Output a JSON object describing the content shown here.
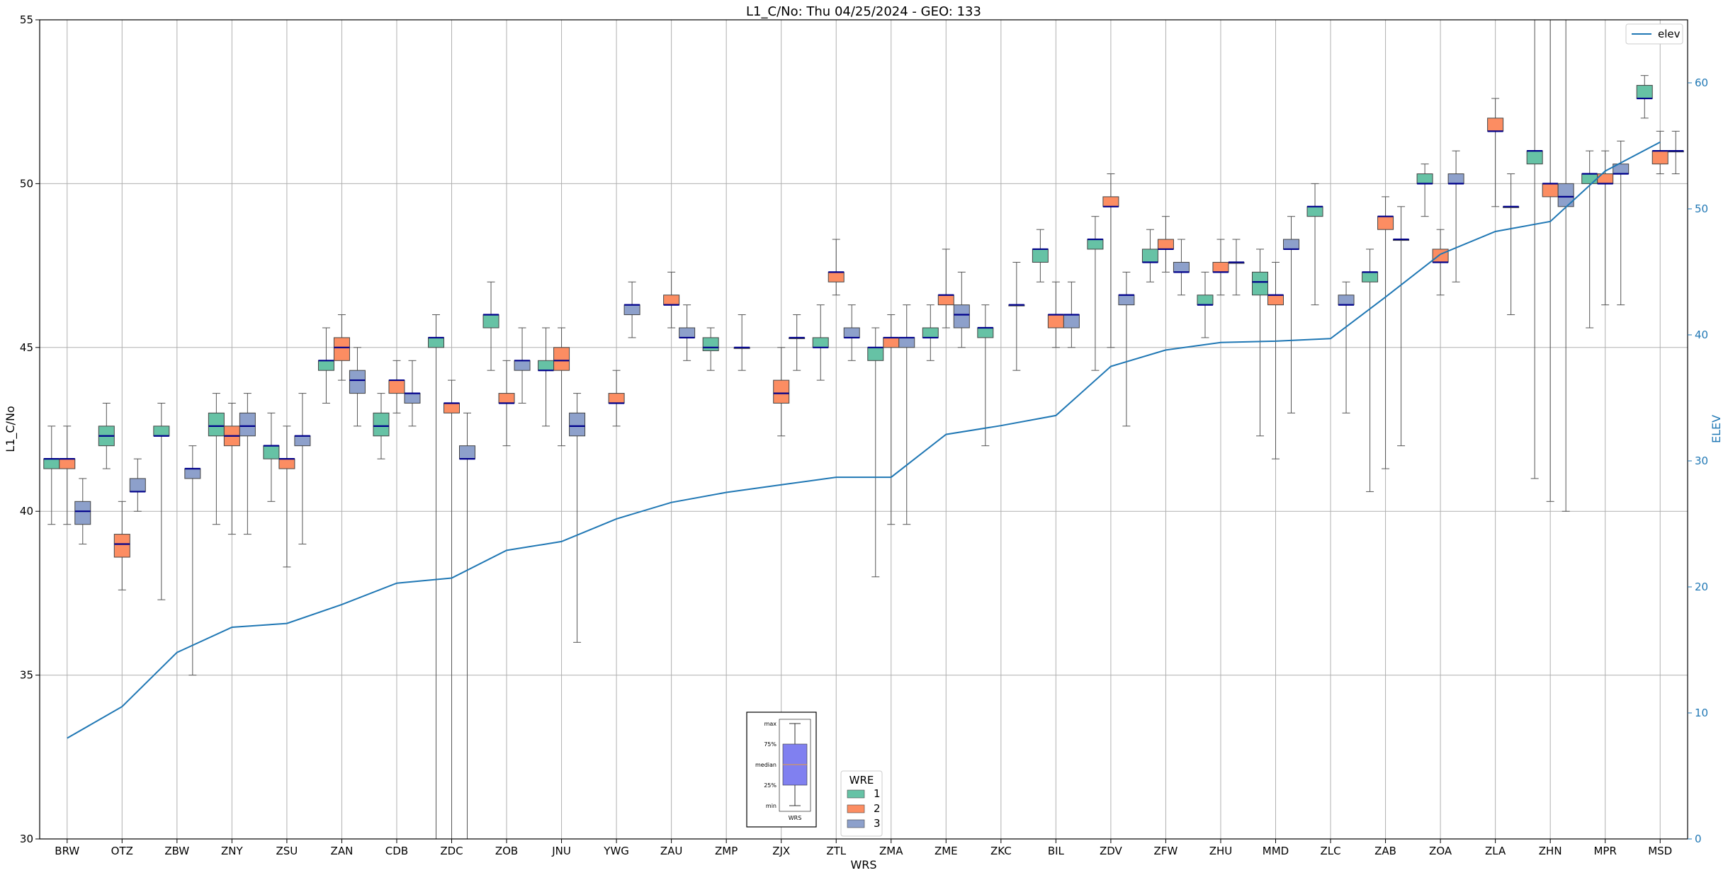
{
  "chart_data": {
    "type": "box",
    "title": "L1_C/No: Thu 04/25/2024 - GEO: 133",
    "xlabel": "WRS",
    "ylabel": "L1_C/No",
    "ylabel_right": "ELEV",
    "ylim": [
      30,
      55
    ],
    "ylim_right": [
      0,
      65
    ],
    "yticks": [
      30,
      35,
      40,
      45,
      50,
      55
    ],
    "yticks_right": [
      0,
      10,
      20,
      30,
      40,
      50,
      60
    ],
    "grid": true,
    "categories": [
      "BRW",
      "OTZ",
      "ZBW",
      "ZNY",
      "ZSU",
      "ZAN",
      "CDB",
      "ZDC",
      "ZOB",
      "JNU",
      "YWG",
      "ZAU",
      "ZMP",
      "ZJX",
      "ZTL",
      "ZMA",
      "ZME",
      "ZKC",
      "BIL",
      "ZDV",
      "ZFW",
      "ZHU",
      "MMD",
      "ZLC",
      "ZAB",
      "ZOA",
      "ZLA",
      "ZHN",
      "MPR",
      "MSD"
    ],
    "legend_title": "WRE",
    "series_colors": {
      "1": "#66c2a5",
      "2": "#fc8d62",
      "3": "#8da0cb"
    },
    "median_color": "#00008b",
    "elev_color": "#1f77b4",
    "line_legend": "elev",
    "line_legend_position": "top-right",
    "box_legend_position": "bottom-center",
    "elev": [
      8,
      10.5,
      14.8,
      16.8,
      17.1,
      18.6,
      20.3,
      20.7,
      22.9,
      23.6,
      25.4,
      26.7,
      27.5,
      28.1,
      28.7,
      28.7,
      32.1,
      32.8,
      33.6,
      37.5,
      38.8,
      39.4,
      39.5,
      39.7,
      43,
      46.4,
      48.2,
      49,
      53,
      55.3
    ],
    "series": [
      {
        "name": "1",
        "boxes": [
          [
            39.6,
            41.3,
            41.6,
            41.6,
            42.6
          ],
          [
            41.3,
            42.0,
            42.3,
            42.6,
            43.3
          ],
          [
            37.3,
            42.3,
            42.3,
            42.6,
            43.3
          ],
          [
            39.6,
            42.3,
            42.6,
            43.0,
            43.6
          ],
          [
            40.3,
            41.6,
            42.0,
            42.0,
            43.0
          ],
          [
            43.3,
            44.3,
            44.6,
            44.6,
            45.6
          ],
          [
            41.6,
            42.3,
            42.6,
            43.0,
            43.6
          ],
          [
            30.0,
            45.0,
            45.3,
            45.3,
            46.0
          ],
          [
            44.3,
            45.6,
            46.0,
            46.0,
            47.0
          ],
          [
            42.6,
            44.3,
            44.3,
            44.6,
            45.6
          ],
          null,
          null,
          [
            44.3,
            44.9,
            45.0,
            45.3,
            45.6
          ],
          null,
          [
            44.0,
            45.0,
            45.0,
            45.3,
            46.3
          ],
          [
            38.0,
            44.6,
            45.0,
            45.0,
            45.6
          ],
          [
            44.6,
            45.3,
            45.3,
            45.6,
            46.3
          ],
          [
            42.0,
            45.3,
            45.6,
            45.6,
            46.3
          ],
          [
            47.0,
            47.6,
            48.0,
            48.0,
            48.6
          ],
          [
            44.3,
            48.0,
            48.3,
            48.3,
            49.0
          ],
          [
            47.0,
            47.6,
            47.6,
            48.0,
            48.6
          ],
          [
            45.3,
            46.3,
            46.3,
            46.6,
            47.3
          ],
          [
            42.3,
            46.6,
            47.0,
            47.3,
            48.0
          ],
          [
            46.3,
            49.0,
            49.3,
            49.3,
            50.0
          ],
          [
            40.6,
            47.0,
            47.3,
            47.3,
            48.0
          ],
          [
            49.0,
            50.0,
            50.0,
            50.3,
            50.6
          ],
          null,
          [
            41.0,
            50.6,
            51.0,
            51.0,
            55.0
          ],
          [
            45.6,
            50.0,
            50.3,
            50.3,
            51.0
          ],
          [
            52.0,
            52.6,
            52.6,
            53.0,
            53.3
          ]
        ]
      },
      {
        "name": "2",
        "boxes": [
          [
            39.6,
            41.3,
            41.6,
            41.6,
            42.6
          ],
          [
            37.6,
            38.6,
            39.0,
            39.3,
            40.3
          ],
          null,
          [
            39.3,
            42.0,
            42.3,
            42.6,
            43.3
          ],
          [
            38.3,
            41.3,
            41.6,
            41.6,
            42.6
          ],
          [
            44.0,
            44.6,
            45.0,
            45.3,
            46.0
          ],
          [
            43.0,
            43.6,
            44.0,
            44.0,
            44.6
          ],
          [
            30.0,
            43.0,
            43.3,
            43.3,
            44.0
          ],
          [
            42.0,
            43.3,
            43.3,
            43.6,
            44.6
          ],
          [
            42.0,
            44.3,
            44.6,
            45.0,
            45.6
          ],
          [
            42.6,
            43.3,
            43.3,
            43.6,
            44.3
          ],
          [
            45.6,
            46.3,
            46.3,
            46.6,
            47.3
          ],
          null,
          [
            42.3,
            43.3,
            43.6,
            44.0,
            45.0
          ],
          [
            46.6,
            47.0,
            47.3,
            47.3,
            48.3
          ],
          [
            39.6,
            45.0,
            45.3,
            45.3,
            46.0
          ],
          [
            45.6,
            46.3,
            46.6,
            46.6,
            48.0
          ],
          null,
          [
            45.0,
            45.6,
            46.0,
            46.0,
            47.0
          ],
          [
            45.0,
            49.3,
            49.3,
            49.6,
            50.3
          ],
          [
            47.3,
            48.0,
            48.0,
            48.3,
            49.0
          ],
          [
            46.6,
            47.3,
            47.3,
            47.6,
            48.3
          ],
          [
            41.6,
            46.3,
            46.6,
            46.6,
            47.6
          ],
          null,
          [
            41.3,
            48.6,
            49.0,
            49.0,
            49.6
          ],
          [
            46.6,
            47.6,
            47.6,
            48.0,
            48.6
          ],
          [
            49.3,
            51.6,
            51.6,
            52.0,
            52.6
          ],
          [
            40.3,
            49.6,
            50.0,
            50.0,
            55.0
          ],
          [
            46.3,
            50.0,
            50.0,
            50.3,
            51.0
          ],
          [
            50.3,
            50.6,
            51.0,
            51.0,
            51.6
          ]
        ]
      },
      {
        "name": "3",
        "boxes": [
          [
            39.0,
            39.6,
            40.0,
            40.3,
            41.0
          ],
          [
            40.0,
            40.6,
            40.6,
            41.0,
            41.6
          ],
          [
            35.0,
            41.0,
            41.3,
            41.3,
            42.0
          ],
          [
            39.3,
            42.3,
            42.6,
            43.0,
            43.6
          ],
          [
            39.0,
            42.0,
            42.3,
            42.3,
            43.6
          ],
          [
            42.6,
            43.6,
            44.0,
            44.3,
            45.0
          ],
          [
            42.6,
            43.3,
            43.6,
            43.6,
            44.6
          ],
          [
            30.0,
            41.6,
            41.6,
            42.0,
            43.0
          ],
          [
            43.3,
            44.3,
            44.6,
            44.6,
            45.6
          ],
          [
            36.0,
            42.3,
            42.6,
            43.0,
            43.6
          ],
          [
            45.3,
            46.0,
            46.3,
            46.3,
            47.0
          ],
          [
            44.6,
            45.3,
            45.3,
            45.6,
            46.3
          ],
          [
            44.3,
            45.0,
            45.0,
            45.0,
            46.0
          ],
          [
            44.3,
            45.3,
            45.3,
            45.3,
            46.0
          ],
          [
            44.6,
            45.3,
            45.3,
            45.6,
            46.3
          ],
          [
            39.6,
            45.0,
            45.3,
            45.3,
            46.3
          ],
          [
            45.0,
            45.6,
            46.0,
            46.3,
            47.3
          ],
          [
            44.3,
            46.3,
            46.3,
            46.3,
            47.6
          ],
          [
            45.0,
            45.6,
            46.0,
            46.0,
            47.0
          ],
          [
            42.6,
            46.3,
            46.6,
            46.6,
            47.3
          ],
          [
            46.6,
            47.3,
            47.3,
            47.6,
            48.3
          ],
          [
            46.6,
            47.6,
            47.6,
            47.6,
            48.3
          ],
          [
            43.0,
            48.0,
            48.0,
            48.3,
            49.0
          ],
          [
            43.0,
            46.3,
            46.3,
            46.6,
            47.0
          ],
          [
            42.0,
            48.3,
            48.3,
            48.3,
            49.3
          ],
          [
            47.0,
            50.0,
            50.0,
            50.3,
            51.0
          ],
          [
            46.0,
            49.3,
            49.3,
            49.3,
            50.3
          ],
          [
            40.0,
            49.3,
            49.6,
            50.0,
            55.0
          ],
          [
            46.3,
            50.3,
            50.3,
            50.6,
            51.3
          ],
          [
            50.3,
            51.0,
            51.0,
            51.0,
            51.6
          ]
        ]
      }
    ],
    "inset": {
      "labels": [
        "max",
        "75%",
        "median",
        "25%",
        "min"
      ],
      "xlabel": "WRS",
      "box_color": "#8080f0"
    }
  }
}
